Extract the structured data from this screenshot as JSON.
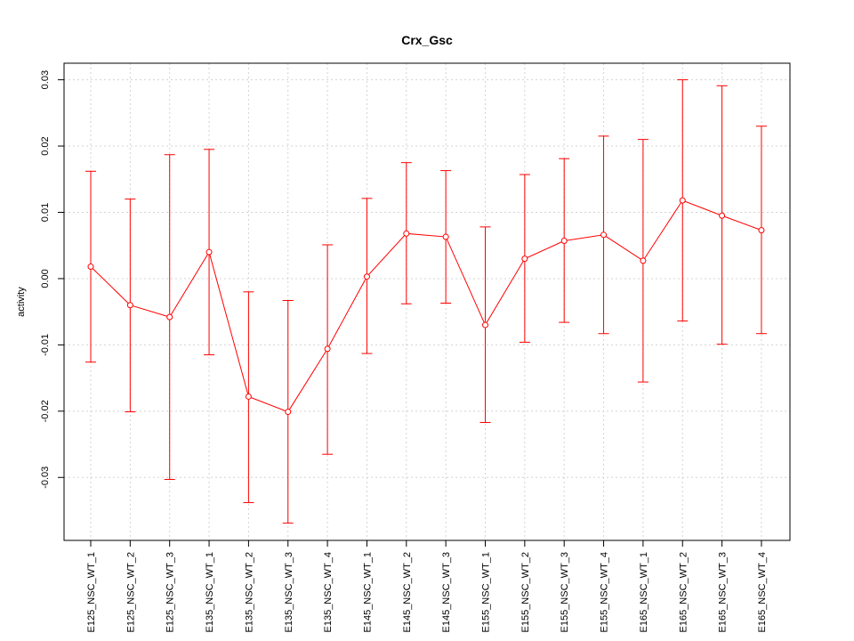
{
  "chart_data": {
    "type": "line",
    "title": "Crx_Gsc",
    "xlabel": "",
    "ylabel": "activity",
    "ylim": [
      -0.0395,
      0.0325
    ],
    "yticks": [
      -0.03,
      -0.02,
      -0.01,
      0.0,
      0.01,
      0.02,
      0.03
    ],
    "ytick_labels": [
      "-0.03",
      "-0.02",
      "-0.01",
      "0.00",
      "0.01",
      "0.02",
      "0.03"
    ],
    "grid": true,
    "color": "#ff0000",
    "grid_color": "#d3d3d3",
    "categories": [
      "E125_NSC_WT_1",
      "E125_NSC_WT_2",
      "E125_NSC_WT_3",
      "E135_NSC_WT_1",
      "E135_NSC_WT_2",
      "E135_NSC_WT_3",
      "E135_NSC_WT_4",
      "E145_NSC_WT_1",
      "E145_NSC_WT_2",
      "E145_NSC_WT_3",
      "E155_NSC_WT_1",
      "E155_NSC_WT_2",
      "E155_NSC_WT_3",
      "E155_NSC_WT_4",
      "E165_NSC_WT_1",
      "E165_NSC_WT_2",
      "E165_NSC_WT_3",
      "E165_NSC_WT_4"
    ],
    "values": [
      0.0018,
      -0.004,
      -0.0058,
      0.004,
      -0.0178,
      -0.0201,
      -0.0106,
      0.0003,
      0.0068,
      0.0063,
      -0.007,
      0.003,
      0.0057,
      0.0066,
      0.0027,
      0.0118,
      0.0095,
      0.0073
    ],
    "upper": [
      0.0162,
      0.012,
      0.0187,
      0.0195,
      -0.002,
      -0.0033,
      0.0051,
      0.0121,
      0.0175,
      0.0163,
      0.0078,
      0.0157,
      0.0181,
      0.0215,
      0.021,
      0.03,
      0.0291,
      0.023
    ],
    "lower": [
      -0.0126,
      -0.0201,
      -0.0303,
      -0.0115,
      -0.0338,
      -0.0369,
      -0.0265,
      -0.0113,
      -0.0038,
      -0.0037,
      -0.0217,
      -0.0096,
      -0.0066,
      -0.0083,
      -0.0156,
      -0.0064,
      -0.0099,
      -0.0083
    ]
  }
}
